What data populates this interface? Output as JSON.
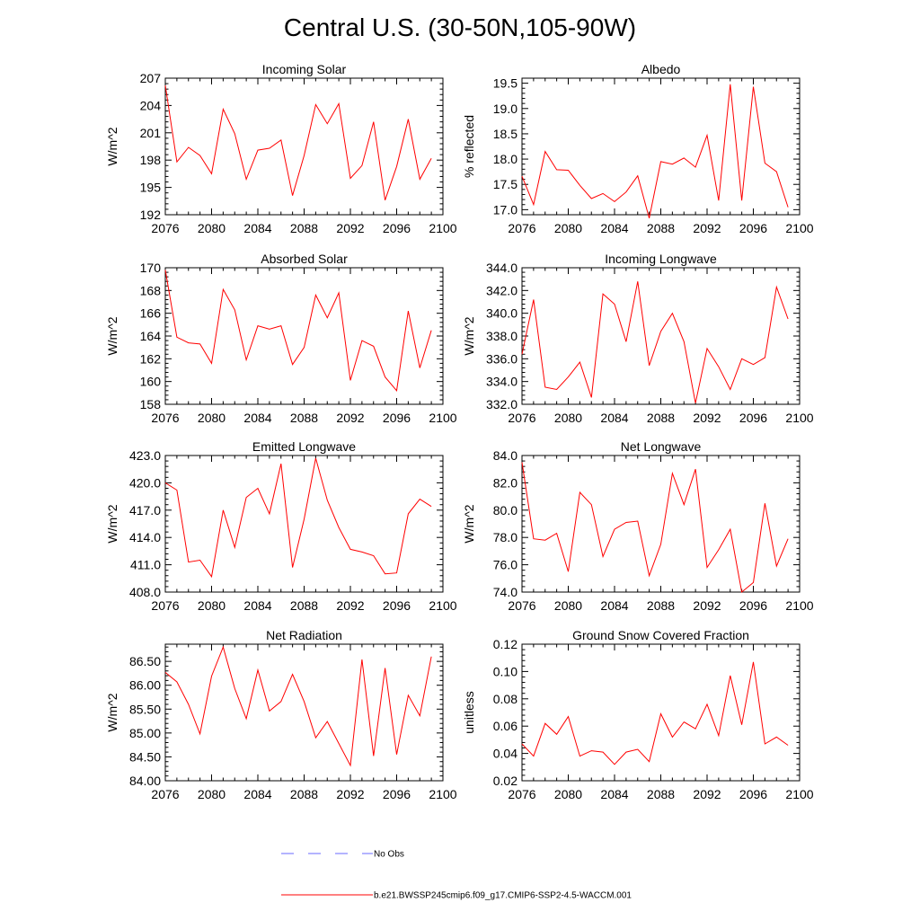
{
  "title": "Central U.S. (30-50N,105-90W)",
  "line_color": "#ff0000",
  "obs_color": "#6a6aff",
  "legend": {
    "obs_label": "No Obs",
    "model_label": "b.e21.BWSSP245cmip6.f09_g17.CMIP6-SSP2-4.5-WACCM.001"
  },
  "chart_data": [
    {
      "type": "line",
      "title": "Incoming Solar",
      "ylabel": "W/m^2",
      "xlim": [
        2076,
        2100
      ],
      "ylim": [
        192,
        207
      ],
      "xticks": [
        2076,
        2080,
        2084,
        2088,
        2092,
        2096,
        2100
      ],
      "yticks": [
        192,
        195,
        198,
        201,
        204,
        207
      ],
      "ytick_labels": [
        "192",
        "195",
        "198",
        "201",
        "204",
        "207"
      ],
      "x": [
        2076,
        2077,
        2078,
        2079,
        2080,
        2081,
        2082,
        2083,
        2084,
        2085,
        2086,
        2087,
        2088,
        2089,
        2090,
        2091,
        2092,
        2093,
        2094,
        2095,
        2096,
        2097,
        2098,
        2099
      ],
      "y": [
        206.2,
        197.8,
        199.4,
        198.5,
        196.5,
        203.6,
        200.9,
        195.9,
        199.1,
        199.3,
        200.2,
        194.1,
        198.5,
        204.1,
        202.0,
        204.2,
        196.0,
        197.4,
        202.2,
        193.6,
        197.3,
        202.5,
        195.9,
        198.2
      ]
    },
    {
      "type": "line",
      "title": "Albedo",
      "ylabel": "% reflected",
      "xlim": [
        2076,
        2100
      ],
      "ylim": [
        16.9,
        19.6
      ],
      "xticks": [
        2076,
        2080,
        2084,
        2088,
        2092,
        2096,
        2100
      ],
      "yticks": [
        17.0,
        17.5,
        18.0,
        18.5,
        19.0,
        19.5
      ],
      "ytick_labels": [
        "17.0",
        "17.5",
        "18.0",
        "18.5",
        "19.0",
        "19.5"
      ],
      "x": [
        2076,
        2077,
        2078,
        2079,
        2080,
        2081,
        2082,
        2083,
        2084,
        2085,
        2086,
        2087,
        2088,
        2089,
        2090,
        2091,
        2092,
        2093,
        2094,
        2095,
        2096,
        2097,
        2098,
        2099
      ],
      "y": [
        17.66,
        17.1,
        18.15,
        17.79,
        17.78,
        17.48,
        17.22,
        17.32,
        17.16,
        17.35,
        17.67,
        16.83,
        17.95,
        17.9,
        18.02,
        17.84,
        18.47,
        17.18,
        19.48,
        17.18,
        19.43,
        17.92,
        17.75,
        17.05
      ]
    },
    {
      "type": "line",
      "title": "Absorbed Solar",
      "ylabel": "W/m^2",
      "xlim": [
        2076,
        2100
      ],
      "ylim": [
        158,
        170
      ],
      "xticks": [
        2076,
        2080,
        2084,
        2088,
        2092,
        2096,
        2100
      ],
      "yticks": [
        158,
        160,
        162,
        164,
        166,
        168,
        170
      ],
      "ytick_labels": [
        "158",
        "160",
        "162",
        "164",
        "166",
        "168",
        "170"
      ],
      "x": [
        2076,
        2077,
        2078,
        2079,
        2080,
        2081,
        2082,
        2083,
        2084,
        2085,
        2086,
        2087,
        2088,
        2089,
        2090,
        2091,
        2092,
        2093,
        2094,
        2095,
        2096,
        2097,
        2098,
        2099
      ],
      "y": [
        169.8,
        163.9,
        163.4,
        163.3,
        161.6,
        168.1,
        166.3,
        161.9,
        164.9,
        164.6,
        164.9,
        161.5,
        163.0,
        167.6,
        165.6,
        167.8,
        160.1,
        163.6,
        163.1,
        160.4,
        159.2,
        166.2,
        161.2,
        164.5
      ]
    },
    {
      "type": "line",
      "title": "Incoming Longwave",
      "ylabel": "W/m^2",
      "xlim": [
        2076,
        2100
      ],
      "ylim": [
        332,
        344
      ],
      "xticks": [
        2076,
        2080,
        2084,
        2088,
        2092,
        2096,
        2100
      ],
      "yticks": [
        332,
        334,
        336,
        338,
        340,
        342,
        344
      ],
      "ytick_labels": [
        "332.0",
        "334.0",
        "336.0",
        "338.0",
        "340.0",
        "342.0",
        "344.0"
      ],
      "x": [
        2076,
        2077,
        2078,
        2079,
        2080,
        2081,
        2082,
        2083,
        2084,
        2085,
        2086,
        2087,
        2088,
        2089,
        2090,
        2091,
        2092,
        2093,
        2094,
        2095,
        2096,
        2097,
        2098,
        2099
      ],
      "y": [
        336.4,
        341.2,
        333.5,
        333.3,
        334.4,
        335.7,
        332.6,
        341.7,
        340.8,
        337.5,
        342.8,
        335.4,
        338.4,
        340.0,
        337.5,
        332.1,
        336.9,
        335.3,
        333.3,
        336.0,
        335.5,
        336.1,
        342.3,
        339.5
      ]
    },
    {
      "type": "line",
      "title": "Emitted Longwave",
      "ylabel": "W/m^2",
      "xlim": [
        2076,
        2100
      ],
      "ylim": [
        408,
        423
      ],
      "xticks": [
        2076,
        2080,
        2084,
        2088,
        2092,
        2096,
        2100
      ],
      "yticks": [
        408,
        411,
        414,
        417,
        420,
        423
      ],
      "ytick_labels": [
        "408.0",
        "411.0",
        "414.0",
        "417.0",
        "420.0",
        "423.0"
      ],
      "x": [
        2076,
        2077,
        2078,
        2079,
        2080,
        2081,
        2082,
        2083,
        2084,
        2085,
        2086,
        2087,
        2088,
        2089,
        2090,
        2091,
        2092,
        2093,
        2094,
        2095,
        2096,
        2097,
        2098,
        2099
      ],
      "y": [
        420.0,
        419.2,
        411.3,
        411.5,
        409.7,
        417.0,
        412.9,
        418.4,
        419.4,
        416.6,
        422.1,
        410.7,
        416.0,
        422.7,
        418.1,
        415.1,
        412.7,
        412.4,
        412.0,
        410.0,
        410.1,
        416.6,
        418.2,
        417.4
      ]
    },
    {
      "type": "line",
      "title": "Net Longwave",
      "ylabel": "W/m^2",
      "xlim": [
        2076,
        2100
      ],
      "ylim": [
        74,
        84
      ],
      "xticks": [
        2076,
        2080,
        2084,
        2088,
        2092,
        2096,
        2100
      ],
      "yticks": [
        74,
        76,
        78,
        80,
        82,
        84
      ],
      "ytick_labels": [
        "74.0",
        "76.0",
        "78.0",
        "80.0",
        "82.0",
        "84.0"
      ],
      "x": [
        2076,
        2077,
        2078,
        2079,
        2080,
        2081,
        2082,
        2083,
        2084,
        2085,
        2086,
        2087,
        2088,
        2089,
        2090,
        2091,
        2092,
        2093,
        2094,
        2095,
        2096,
        2097,
        2098,
        2099
      ],
      "y": [
        83.5,
        77.9,
        77.8,
        78.3,
        75.5,
        81.3,
        80.4,
        76.6,
        78.6,
        79.1,
        79.2,
        75.2,
        77.5,
        82.7,
        80.4,
        83.0,
        75.8,
        77.1,
        78.6,
        74.0,
        74.7,
        80.5,
        75.9,
        77.9
      ]
    },
    {
      "type": "line",
      "title": "Net Radiation",
      "ylabel": "W/m^2",
      "xlim": [
        2076,
        2100
      ],
      "ylim": [
        84,
        86.86
      ],
      "xticks": [
        2076,
        2080,
        2084,
        2088,
        2092,
        2096,
        2100
      ],
      "yticks": [
        84.0,
        84.5,
        85.0,
        85.5,
        86.0,
        86.5
      ],
      "ytick_labels": [
        "84.00",
        "84.50",
        "85.00",
        "85.50",
        "86.00",
        "86.50"
      ],
      "x": [
        2076,
        2077,
        2078,
        2079,
        2080,
        2081,
        2082,
        2083,
        2084,
        2085,
        2086,
        2087,
        2088,
        2089,
        2090,
        2091,
        2092,
        2093,
        2094,
        2095,
        2096,
        2097,
        2098,
        2099
      ],
      "y": [
        86.27,
        86.07,
        85.6,
        84.98,
        86.19,
        86.8,
        85.93,
        85.3,
        86.32,
        85.46,
        85.66,
        86.23,
        85.66,
        84.9,
        85.24,
        84.78,
        84.32,
        86.54,
        84.52,
        86.36,
        84.55,
        85.79,
        85.36,
        86.6
      ]
    },
    {
      "type": "line",
      "title": "Ground Snow Covered Fraction",
      "ylabel": "unitless",
      "xlim": [
        2076,
        2100
      ],
      "ylim": [
        0.02,
        0.12
      ],
      "xticks": [
        2076,
        2080,
        2084,
        2088,
        2092,
        2096,
        2100
      ],
      "yticks": [
        0.02,
        0.04,
        0.06,
        0.08,
        0.1,
        0.12
      ],
      "ytick_labels": [
        "0.02",
        "0.04",
        "0.06",
        "0.08",
        "0.10",
        "0.12"
      ],
      "x": [
        2076,
        2077,
        2078,
        2079,
        2080,
        2081,
        2082,
        2083,
        2084,
        2085,
        2086,
        2087,
        2088,
        2089,
        2090,
        2091,
        2092,
        2093,
        2094,
        2095,
        2096,
        2097,
        2098,
        2099
      ],
      "y": [
        0.047,
        0.038,
        0.062,
        0.054,
        0.067,
        0.038,
        0.042,
        0.041,
        0.032,
        0.041,
        0.043,
        0.034,
        0.069,
        0.052,
        0.063,
        0.058,
        0.076,
        0.053,
        0.097,
        0.061,
        0.107,
        0.047,
        0.052,
        0.046
      ]
    }
  ]
}
